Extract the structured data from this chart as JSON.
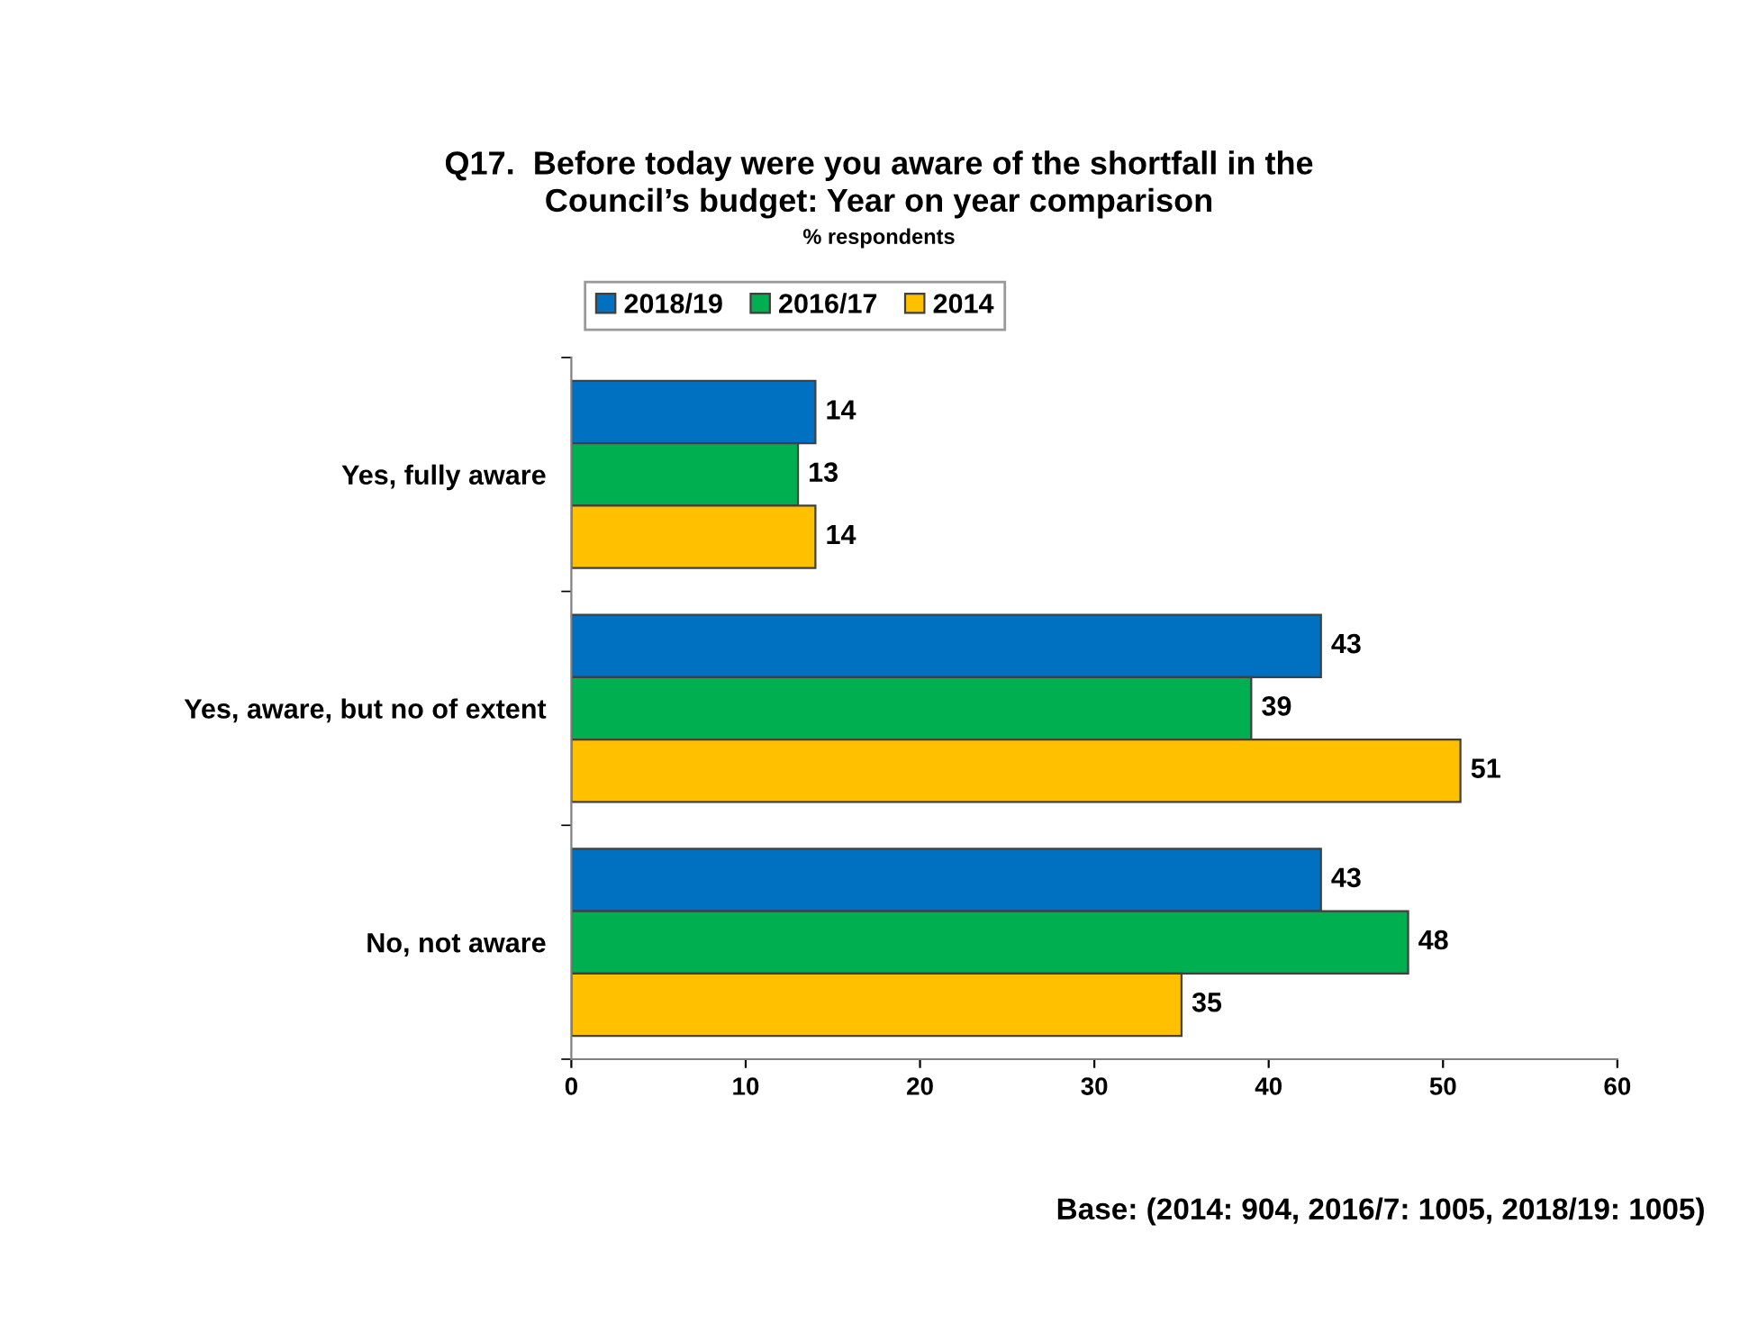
{
  "chart_data": {
    "type": "bar",
    "orientation": "horizontal",
    "title": "Q17.  Before today were you aware of the shortfall in the\nCouncil’s budget: Year on year comparison",
    "subtitle": "% respondents",
    "categories": [
      "Yes, fully aware",
      "Yes, aware, but no of extent",
      "No, not aware"
    ],
    "series": [
      {
        "name": "2018/19",
        "color": "#0070c0",
        "values": [
          14,
          43,
          43
        ]
      },
      {
        "name": "2016/17",
        "color": "#00b050",
        "values": [
          13,
          39,
          48
        ]
      },
      {
        "name": "2014",
        "color": "#ffc000",
        "values": [
          14,
          51,
          35
        ]
      }
    ],
    "xlim": [
      0,
      60
    ],
    "xticks": [
      0,
      10,
      20,
      30,
      40,
      50,
      60
    ],
    "data_labels": true,
    "grid": false,
    "legend": "top",
    "annotations": [
      "Base: (2014: 904, 2016/7: 1005, 2018/19: 1005)"
    ]
  }
}
